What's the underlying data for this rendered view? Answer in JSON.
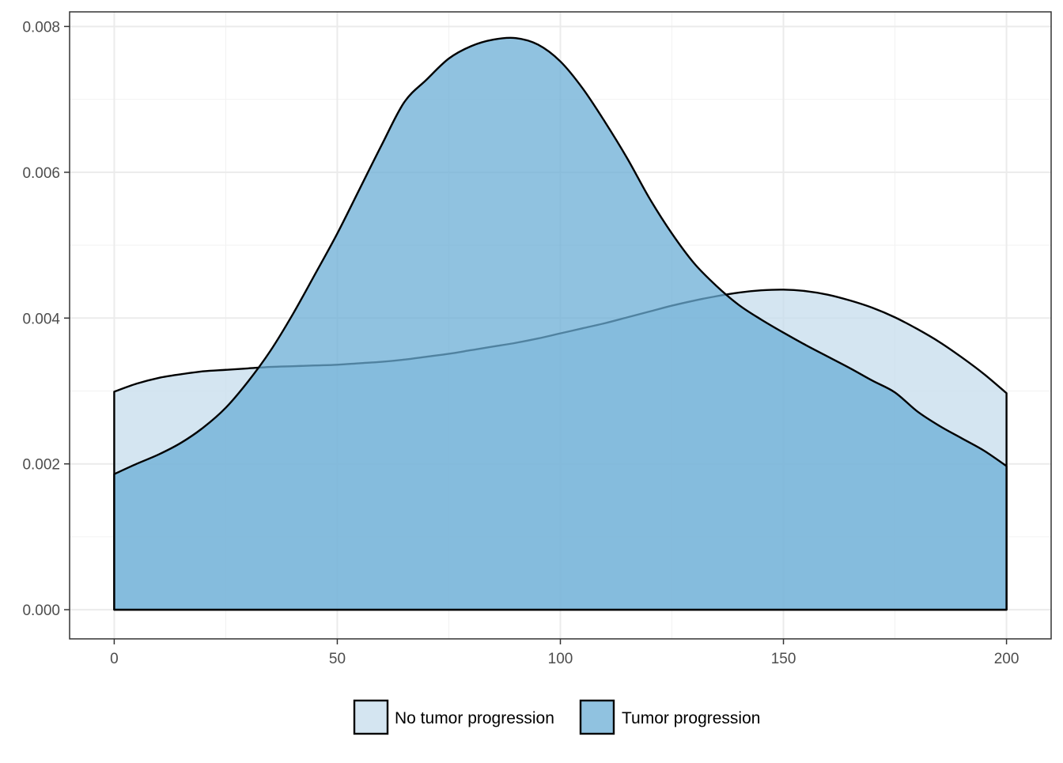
{
  "chart_data": {
    "type": "area",
    "title": "",
    "xlabel": "",
    "ylabel": "",
    "xlim": [
      -10,
      210
    ],
    "ylim": [
      -0.0004,
      0.0082
    ],
    "x_ticks": [
      0,
      50,
      100,
      150,
      200
    ],
    "x_tick_labels": [
      "0",
      "50",
      "100",
      "150",
      "200"
    ],
    "y_ticks": [
      0,
      0.002,
      0.004,
      0.006,
      0.008
    ],
    "y_tick_labels": [
      "0.000",
      "0.002",
      "0.004",
      "0.006",
      "0.008"
    ],
    "grid": true,
    "legend_position": "bottom",
    "series": [
      {
        "name": "No tumor progression",
        "color": "#c6dcec",
        "x": [
          0,
          5,
          10,
          15,
          20,
          25,
          30,
          35,
          40,
          45,
          50,
          55,
          60,
          65,
          70,
          75,
          80,
          85,
          90,
          95,
          100,
          105,
          110,
          115,
          120,
          125,
          130,
          135,
          140,
          145,
          150,
          155,
          160,
          165,
          170,
          175,
          180,
          185,
          190,
          195,
          200
        ],
        "y": [
          0.00299,
          0.0031,
          0.00318,
          0.00323,
          0.00327,
          0.00329,
          0.00331,
          0.00333,
          0.00334,
          0.00335,
          0.00336,
          0.00338,
          0.0034,
          0.00343,
          0.00347,
          0.00351,
          0.00356,
          0.00361,
          0.00366,
          0.00372,
          0.00379,
          0.00386,
          0.00393,
          0.00401,
          0.00409,
          0.00417,
          0.00424,
          0.0043,
          0.00435,
          0.00438,
          0.00439,
          0.00437,
          0.00432,
          0.00424,
          0.00414,
          0.00401,
          0.00385,
          0.00367,
          0.00346,
          0.00323,
          0.00297
        ]
      },
      {
        "name": "Tumor progression",
        "color": "#6baed6",
        "x": [
          0,
          5,
          10,
          15,
          20,
          25,
          30,
          35,
          40,
          45,
          50,
          55,
          60,
          65,
          70,
          75,
          80,
          85,
          90,
          95,
          100,
          105,
          110,
          115,
          120,
          125,
          130,
          135,
          140,
          145,
          150,
          155,
          160,
          165,
          170,
          175,
          180,
          185,
          190,
          195,
          200
        ],
        "y": [
          0.00186,
          0.002,
          0.00213,
          0.00229,
          0.0025,
          0.00277,
          0.00313,
          0.00355,
          0.00405,
          0.0046,
          0.00516,
          0.00577,
          0.00638,
          0.00696,
          0.00727,
          0.00756,
          0.00773,
          0.00782,
          0.00784,
          0.00775,
          0.00752,
          0.00715,
          0.00669,
          0.00619,
          0.00564,
          0.00516,
          0.00475,
          0.00444,
          0.00418,
          0.00398,
          0.0038,
          0.00363,
          0.00347,
          0.00331,
          0.00314,
          0.00298,
          0.00272,
          0.00252,
          0.00235,
          0.00218,
          0.00197
        ]
      }
    ]
  }
}
